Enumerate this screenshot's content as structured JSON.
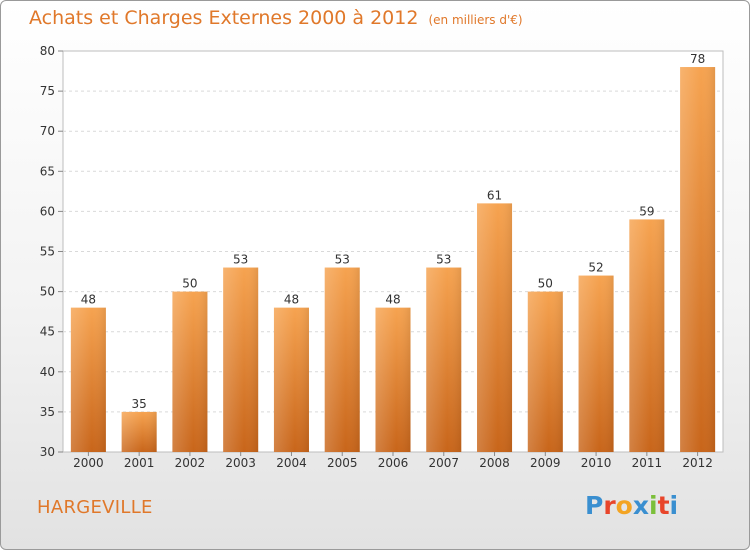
{
  "title": "Achats et Charges Externes 2000 à 2012",
  "unit": "(en milliers d'€)",
  "location": "HARGEVILLE",
  "logo": {
    "letters": [
      "P",
      "r",
      "o",
      "x",
      "i",
      "t",
      "i"
    ],
    "colors": [
      "#3a8fd0",
      "#e8452a",
      "#f3a423",
      "#3a8fd0",
      "#7bbf3a",
      "#e8452a",
      "#3a8fd0"
    ]
  },
  "colors": {
    "bar_top": "#f6a350",
    "bar_bottom": "#c8651a",
    "accent": "#e0782a"
  },
  "chart_data": {
    "type": "bar",
    "categories": [
      "2000",
      "2001",
      "2002",
      "2003",
      "2004",
      "2005",
      "2006",
      "2007",
      "2008",
      "2009",
      "2010",
      "2011",
      "2012"
    ],
    "values": [
      48,
      35,
      50,
      53,
      48,
      53,
      48,
      53,
      61,
      50,
      52,
      59,
      78
    ],
    "title": "Achats et Charges Externes 2000 à 2012",
    "ylim": [
      30,
      80
    ],
    "yticks": [
      30,
      35,
      40,
      45,
      50,
      55,
      60,
      65,
      70,
      75,
      80
    ],
    "grid": true
  }
}
